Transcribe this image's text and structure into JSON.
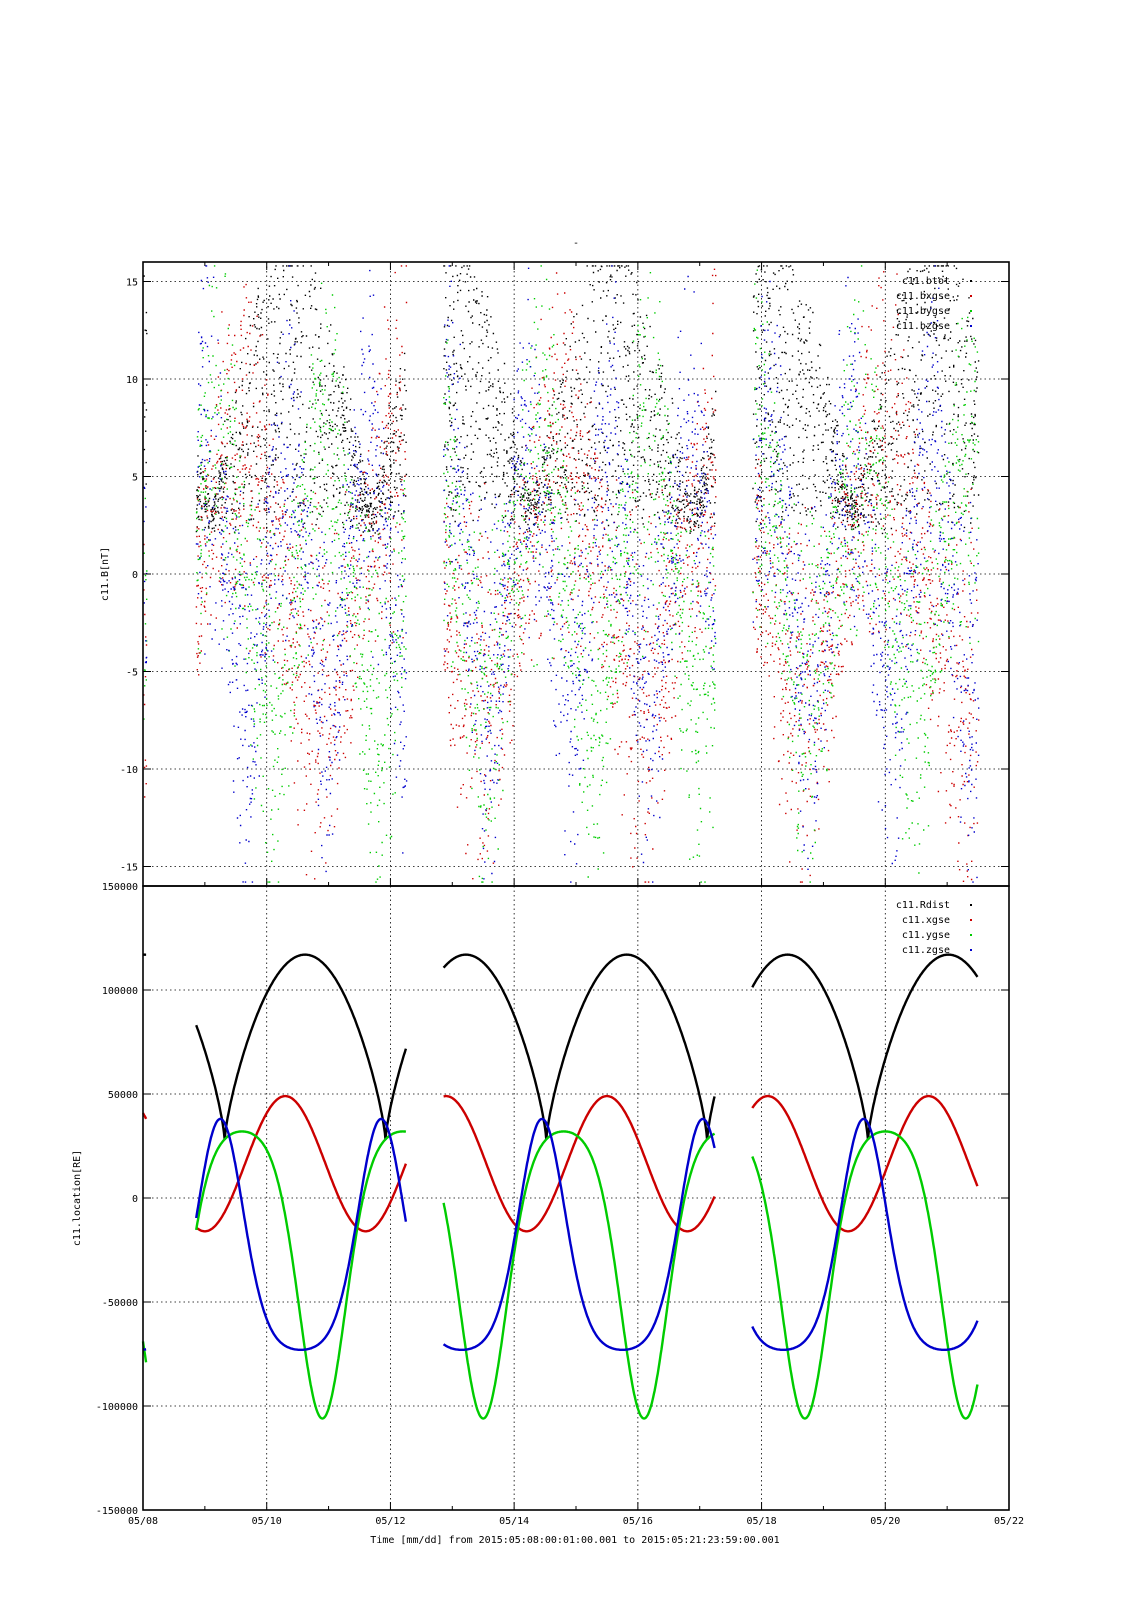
{
  "title": "-",
  "xlabel": "Time [mm/dd]  from 2015:05:08:00:01:00.001  to  2015:05:21:23:59:00.001",
  "colors": {
    "black": "#000000",
    "red": "#cc0000",
    "green": "#00cc00",
    "blue": "#0000cc"
  },
  "chart_data": [
    {
      "type": "scatter",
      "ylabel": "c11.B[nT]",
      "ylim": [
        -16,
        16
      ],
      "yticks": [
        "-15",
        "-10",
        "-5",
        "0",
        "5",
        "10",
        "15"
      ],
      "ytick_values": [
        -15,
        -10,
        -5,
        0,
        5,
        10,
        15
      ],
      "xlim_days": [
        8,
        22
      ],
      "grid": true,
      "legend_position": "top-right",
      "series": [
        {
          "name": "c11.btot",
          "color": "#000000"
        },
        {
          "name": "c11.bxgse",
          "color": "#cc0000"
        },
        {
          "name": "c11.bygse",
          "color": "#00cc00"
        },
        {
          "name": "c11.bzgse",
          "color": "#0000cc"
        }
      ]
    },
    {
      "type": "line",
      "ylabel": "c11.location[RE]",
      "ylim": [
        -150000,
        150000
      ],
      "yticks": [
        "-150000",
        "-100000",
        "-50000",
        "0",
        "50000",
        "100000",
        "150000"
      ],
      "ytick_values": [
        -150000,
        -100000,
        -50000,
        0,
        50000,
        100000,
        150000
      ],
      "xlim_days": [
        8,
        22
      ],
      "xticks": [
        "05/08",
        "05/10",
        "05/12",
        "05/14",
        "05/16",
        "05/18",
        "05/20",
        "05/22"
      ],
      "xtick_values": [
        8,
        10,
        12,
        14,
        16,
        18,
        20,
        22
      ],
      "grid": true,
      "legend_position": "top-right",
      "orbit_period_days": 2.6,
      "data_gaps_days": [
        [
          8.05,
          8.85
        ],
        [
          12.25,
          12.85
        ],
        [
          17.25,
          17.85
        ],
        [
          21.5,
          22.0
        ]
      ],
      "series": [
        {
          "name": "c11.Rdist",
          "color": "#000000",
          "min": 28000,
          "max": 117000
        },
        {
          "name": "c11.xgse",
          "color": "#cc0000",
          "min": -16000,
          "max": 49000
        },
        {
          "name": "c11.ygse",
          "color": "#00cc00",
          "min": -106000,
          "max": 32000
        },
        {
          "name": "c11.zgse",
          "color": "#0000cc",
          "min": -73000,
          "max": 38000
        }
      ]
    }
  ]
}
